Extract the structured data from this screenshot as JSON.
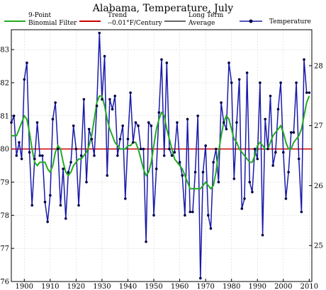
{
  "chart_data": {
    "type": "line",
    "title": "Alabama, Temperature, July",
    "xlabel": "",
    "ylabel": "",
    "xlim": [
      1895,
      2011
    ],
    "ylim": [
      76,
      83.6
    ],
    "y2lim": [
      24.4,
      28.6
    ],
    "y_ticks": [
      "76",
      "77",
      "78",
      "79",
      "80",
      "81",
      "82",
      "83"
    ],
    "y2_ticks": [
      "25",
      "26",
      "27",
      "28"
    ],
    "x_ticks": [
      "1900",
      "1910",
      "1920",
      "1930",
      "1940",
      "1950",
      "1960",
      "1970",
      "1980",
      "1990",
      "2000",
      "2010"
    ],
    "grid": true,
    "legend_position": "top",
    "legend": [
      {
        "label_line1": "9-Point",
        "label_line2": "Binomial Filter",
        "color": "#22aa22"
      },
      {
        "label_line1": "Trend",
        "label_line2": "--0.01°F/Century",
        "color": "#cc0000"
      },
      {
        "label_line1": "Long Term",
        "label_line2": "Average",
        "color": "#666666"
      },
      {
        "label_line1": "Temperature",
        "label_line2": "",
        "color": "#1a1aaa"
      }
    ],
    "trend_value": 80.0,
    "colors": {
      "temperature": "#1a1aaa",
      "filter": "#22aa22",
      "trend": "#cc0000",
      "average": "#666666",
      "grid": "#cccccc"
    },
    "series": [
      {
        "name": "Temperature",
        "x_start": 1895,
        "values": [
          80.8,
          81.0,
          79.8,
          80.2,
          79.7,
          82.1,
          82.6,
          79.9,
          78.3,
          79.7,
          80.8,
          79.8,
          79.8,
          78.4,
          77.8,
          78.6,
          80.9,
          81.4,
          80.0,
          78.3,
          79.4,
          77.9,
          79.3,
          79.6,
          80.7,
          80.0,
          78.3,
          79.8,
          81.5,
          79.0,
          80.6,
          80.3,
          79.8,
          81.3,
          83.5,
          81.5,
          82.8,
          79.2,
          81.5,
          81.2,
          81.6,
          79.8,
          80.3,
          80.7,
          78.5,
          80.3,
          81.7,
          80.2,
          80.8,
          80.7,
          80.0,
          80.0,
          77.2,
          80.8,
          80.7,
          78.0,
          79.4,
          81.1,
          82.7,
          79.8,
          82.6,
          80.0,
          79.8,
          79.9,
          80.8,
          79.6,
          79.2,
          78.0,
          80.9,
          78.1,
          78.1,
          79.3,
          81.0,
          76.1,
          79.3,
          80.1,
          78.0,
          77.6,
          79.6,
          80.0,
          79.0,
          81.4,
          80.8,
          80.6,
          82.6,
          82.0,
          79.1,
          80.8,
          82.1,
          78.2,
          78.5,
          82.3,
          79.0,
          78.7,
          80.0,
          79.7,
          82.0,
          77.4,
          80.9,
          80.0,
          81.6,
          79.5,
          79.9,
          81.2,
          82.0,
          79.9,
          78.5,
          79.3,
          80.5,
          80.5,
          82.0,
          79.7,
          78.1,
          82.7,
          81.7,
          81.7
        ]
      },
      {
        "name": "9-Point Binomial Filter",
        "x_start": 1895,
        "values": [
          80.4,
          80.4,
          80.4,
          80.6,
          80.8,
          81.0,
          80.9,
          80.5,
          80.0,
          79.6,
          79.5,
          79.6,
          79.6,
          79.6,
          79.4,
          79.3,
          79.5,
          79.9,
          80.1,
          80.0,
          79.6,
          79.3,
          79.2,
          79.3,
          79.5,
          79.6,
          79.7,
          79.7,
          79.8,
          79.9,
          80.1,
          80.4,
          80.9,
          81.4,
          81.6,
          81.6,
          81.3,
          80.9,
          80.6,
          80.4,
          80.2,
          80.1,
          80.0,
          80.0,
          80.0,
          80.1,
          80.1,
          80.2,
          80.2,
          80.0,
          79.7,
          79.4,
          79.2,
          79.3,
          79.6,
          80.1,
          80.6,
          80.9,
          81.1,
          81.0,
          80.6,
          80.3,
          80.0,
          79.7,
          79.6,
          79.5,
          79.4,
          79.2,
          79.0,
          78.8,
          78.8,
          78.8,
          78.8,
          78.8,
          78.9,
          79.0,
          78.9,
          78.8,
          78.9,
          79.3,
          79.9,
          80.4,
          80.8,
          81.0,
          80.9,
          80.6,
          80.3,
          80.2,
          80.0,
          79.9,
          79.8,
          79.7,
          79.6,
          79.6,
          79.8,
          80.1,
          80.2,
          80.1,
          80.0,
          80.0,
          80.2,
          80.4,
          80.5,
          80.6,
          80.7,
          80.5,
          80.2,
          80.0,
          80.0,
          80.2,
          80.3,
          80.4,
          80.6,
          81.0,
          81.4,
          81.6
        ]
      }
    ]
  }
}
